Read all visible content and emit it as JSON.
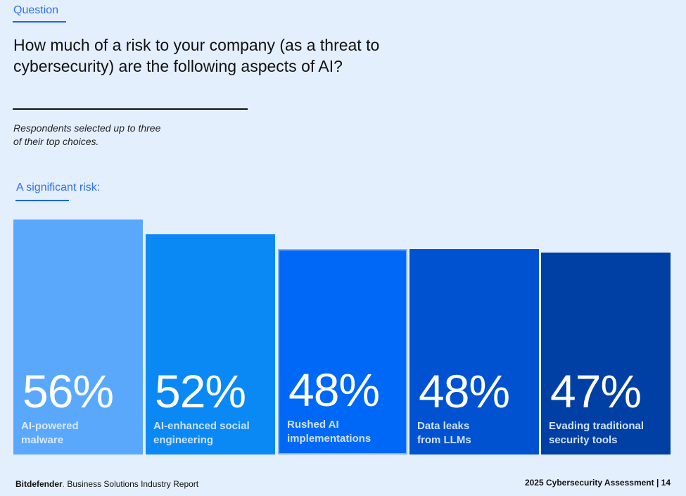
{
  "header": {
    "kicker": "Question",
    "title": "How much of a risk to your company (as a threat to cybersecurity) are the following aspects of AI?",
    "note_line1": "Respondents selected up to three",
    "note_line2": "of their top choices.",
    "subheading": "A significant risk:"
  },
  "chart_data": {
    "type": "bar",
    "title": "A significant risk:",
    "categories": [
      [
        "AI-powered",
        "malware"
      ],
      [
        "AI-enhanced social",
        "engineering"
      ],
      [
        "Rushed AI",
        "implementations"
      ],
      [
        "Data leaks",
        "from LLMs"
      ],
      [
        "Evading traditional",
        "security tools"
      ]
    ],
    "values": [
      56,
      52,
      48,
      48,
      47
    ],
    "value_labels": [
      "56%",
      "52%",
      "48%",
      "48%",
      "47%"
    ],
    "colors": [
      "#5aa8fb",
      "#0a89f4",
      "#0068f6",
      "#0052d0",
      "#003fa3"
    ]
  },
  "footer": {
    "brand": "Bitdefender",
    "left": "Business Solutions Industry Report",
    "right": "2025 Cybersecurity Assessment | 14"
  }
}
